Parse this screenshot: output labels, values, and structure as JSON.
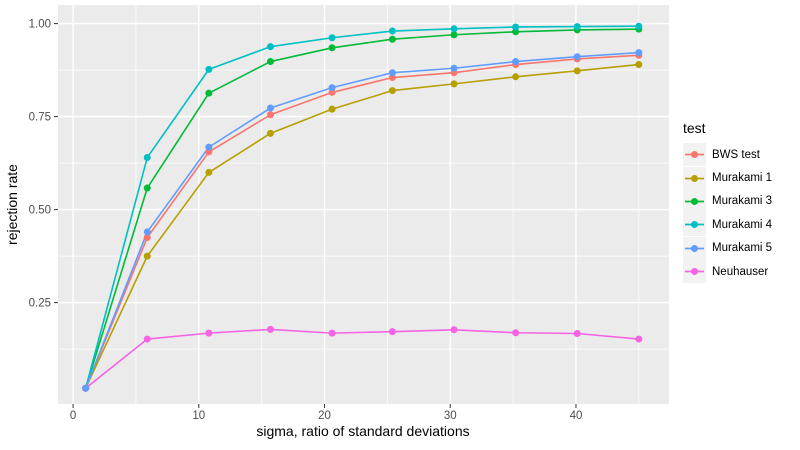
{
  "chart_data": {
    "type": "line",
    "title": "",
    "xlabel": "sigma, ratio of standard deviations",
    "ylabel": "rejection rate",
    "x": [
      1,
      5.9,
      10.8,
      15.7,
      20.6,
      25.4,
      30.3,
      35.2,
      40.1,
      45
    ],
    "xlim": [
      -1.2,
      47.4
    ],
    "ylim": [
      -0.0225,
      1.05
    ],
    "x_major_ticks": [
      0,
      10,
      20,
      30,
      40
    ],
    "x_tick_labels": [
      "0",
      "10",
      "20",
      "30",
      "40"
    ],
    "x_minor_ticks": [
      5,
      15,
      25,
      35,
      45
    ],
    "y_major_ticks": [
      0.25,
      0.5,
      0.75,
      1.0
    ],
    "y_tick_labels": [
      "0.25",
      "0.50",
      "0.75",
      "1.00"
    ],
    "y_minor_ticks": [
      0.125,
      0.375,
      0.625,
      0.875
    ],
    "grid": "white major and minor gridlines on gray panel",
    "legend_position": "right",
    "legend_title": "test",
    "series": [
      {
        "name": "BWS test",
        "color": "#F8766D",
        "values": [
          0.02,
          0.425,
          0.655,
          0.755,
          0.815,
          0.855,
          0.868,
          0.89,
          0.905,
          0.915
        ]
      },
      {
        "name": "Murakami 1",
        "color": "#B79F00",
        "values": [
          0.02,
          0.375,
          0.6,
          0.705,
          0.77,
          0.82,
          0.838,
          0.857,
          0.873,
          0.89
        ]
      },
      {
        "name": "Murakami 3",
        "color": "#00BA38",
        "values": [
          0.02,
          0.558,
          0.813,
          0.898,
          0.935,
          0.958,
          0.97,
          0.978,
          0.983,
          0.985
        ]
      },
      {
        "name": "Murakami 4",
        "color": "#00BFC4",
        "values": [
          0.02,
          0.64,
          0.877,
          0.938,
          0.962,
          0.98,
          0.986,
          0.991,
          0.992,
          0.993
        ]
      },
      {
        "name": "Murakami 5",
        "color": "#619CFF",
        "values": [
          0.02,
          0.44,
          0.668,
          0.773,
          0.828,
          0.868,
          0.88,
          0.898,
          0.911,
          0.922
        ]
      },
      {
        "name": "Neuhauser",
        "color": "#F564E2",
        "values": [
          0.02,
          0.152,
          0.168,
          0.178,
          0.168,
          0.172,
          0.177,
          0.169,
          0.167,
          0.152
        ]
      }
    ],
    "panel_bg": "#EBEBEB",
    "gridline_color": "#FFFFFF",
    "tick_mark_color": "#333333",
    "tick_label_color": "#4D4D4D",
    "legend_key_bg": "#F2F2F2"
  }
}
